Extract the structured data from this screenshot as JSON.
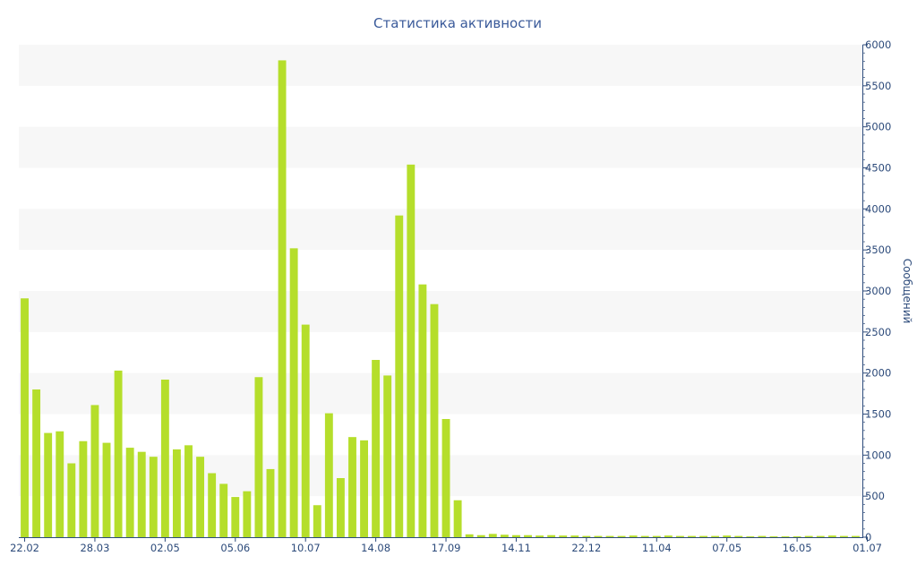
{
  "chart_data": {
    "type": "bar",
    "title": "Статистика активности",
    "xlabel": "",
    "ylabel": "Сообщений",
    "ylim": [
      0,
      6000
    ],
    "yticks": [
      0,
      500,
      1000,
      1500,
      2000,
      2500,
      3000,
      3500,
      4000,
      4500,
      5000,
      5500,
      6000
    ],
    "xtick_labels": [
      {
        "label": "22.02",
        "index": 0
      },
      {
        "label": "28.03",
        "index": 6
      },
      {
        "label": "02.05",
        "index": 12
      },
      {
        "label": "05.06",
        "index": 18
      },
      {
        "label": "10.07",
        "index": 24
      },
      {
        "label": "14.08",
        "index": 30
      },
      {
        "label": "17.09",
        "index": 36
      },
      {
        "label": "14.11",
        "index": 42
      },
      {
        "label": "22.12",
        "index": 48
      },
      {
        "label": "11.04",
        "index": 54
      },
      {
        "label": "07.05",
        "index": 60
      },
      {
        "label": "16.05",
        "index": 66
      },
      {
        "label": "01.07",
        "index": 72
      }
    ],
    "values": [
      2910,
      1800,
      1270,
      1290,
      900,
      1170,
      1610,
      1150,
      2030,
      1090,
      1040,
      980,
      1920,
      1070,
      1120,
      980,
      780,
      650,
      490,
      560,
      1950,
      830,
      5810,
      3520,
      2590,
      390,
      1510,
      720,
      1220,
      1180,
      2160,
      1970,
      3920,
      4540,
      3080,
      2840,
      1440,
      450,
      35,
      25,
      40,
      30,
      25,
      25,
      20,
      25,
      20,
      20,
      15,
      15,
      15,
      15,
      20,
      15,
      15,
      20,
      15,
      15,
      15,
      15,
      20,
      15,
      10,
      15,
      10,
      10,
      10,
      15,
      15,
      20,
      15,
      15
    ],
    "colors": {
      "bar": "#b5de2b",
      "band": "#f7f7f7",
      "axis": "#2c4a7a",
      "title": "#3a5a9a"
    },
    "grid": "alternating-bands",
    "y_axis_position": "right"
  }
}
